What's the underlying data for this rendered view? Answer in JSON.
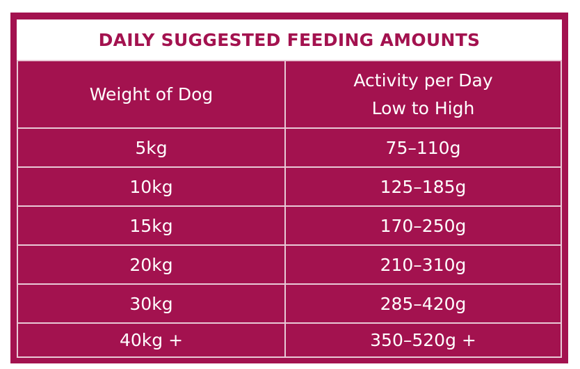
{
  "title": "DAILY SUGGESTED FEEDING AMOUNTS",
  "colors": {
    "accent": "#a3124f",
    "grid": "#e9c9d6",
    "text": "#ffffff"
  },
  "header": {
    "col1": "Weight of Dog",
    "col2_line1": "Activity per Day",
    "col2_line2": "Low to High"
  },
  "rows": [
    {
      "weight": "5kg",
      "amount": "75–110g"
    },
    {
      "weight": "10kg",
      "amount": "125–185g"
    },
    {
      "weight": "15kg",
      "amount": "170–250g"
    },
    {
      "weight": "20kg",
      "amount": "210–310g"
    },
    {
      "weight": "30kg",
      "amount": "285–420g"
    },
    {
      "weight": "40kg +",
      "amount": "350–520g +"
    }
  ]
}
